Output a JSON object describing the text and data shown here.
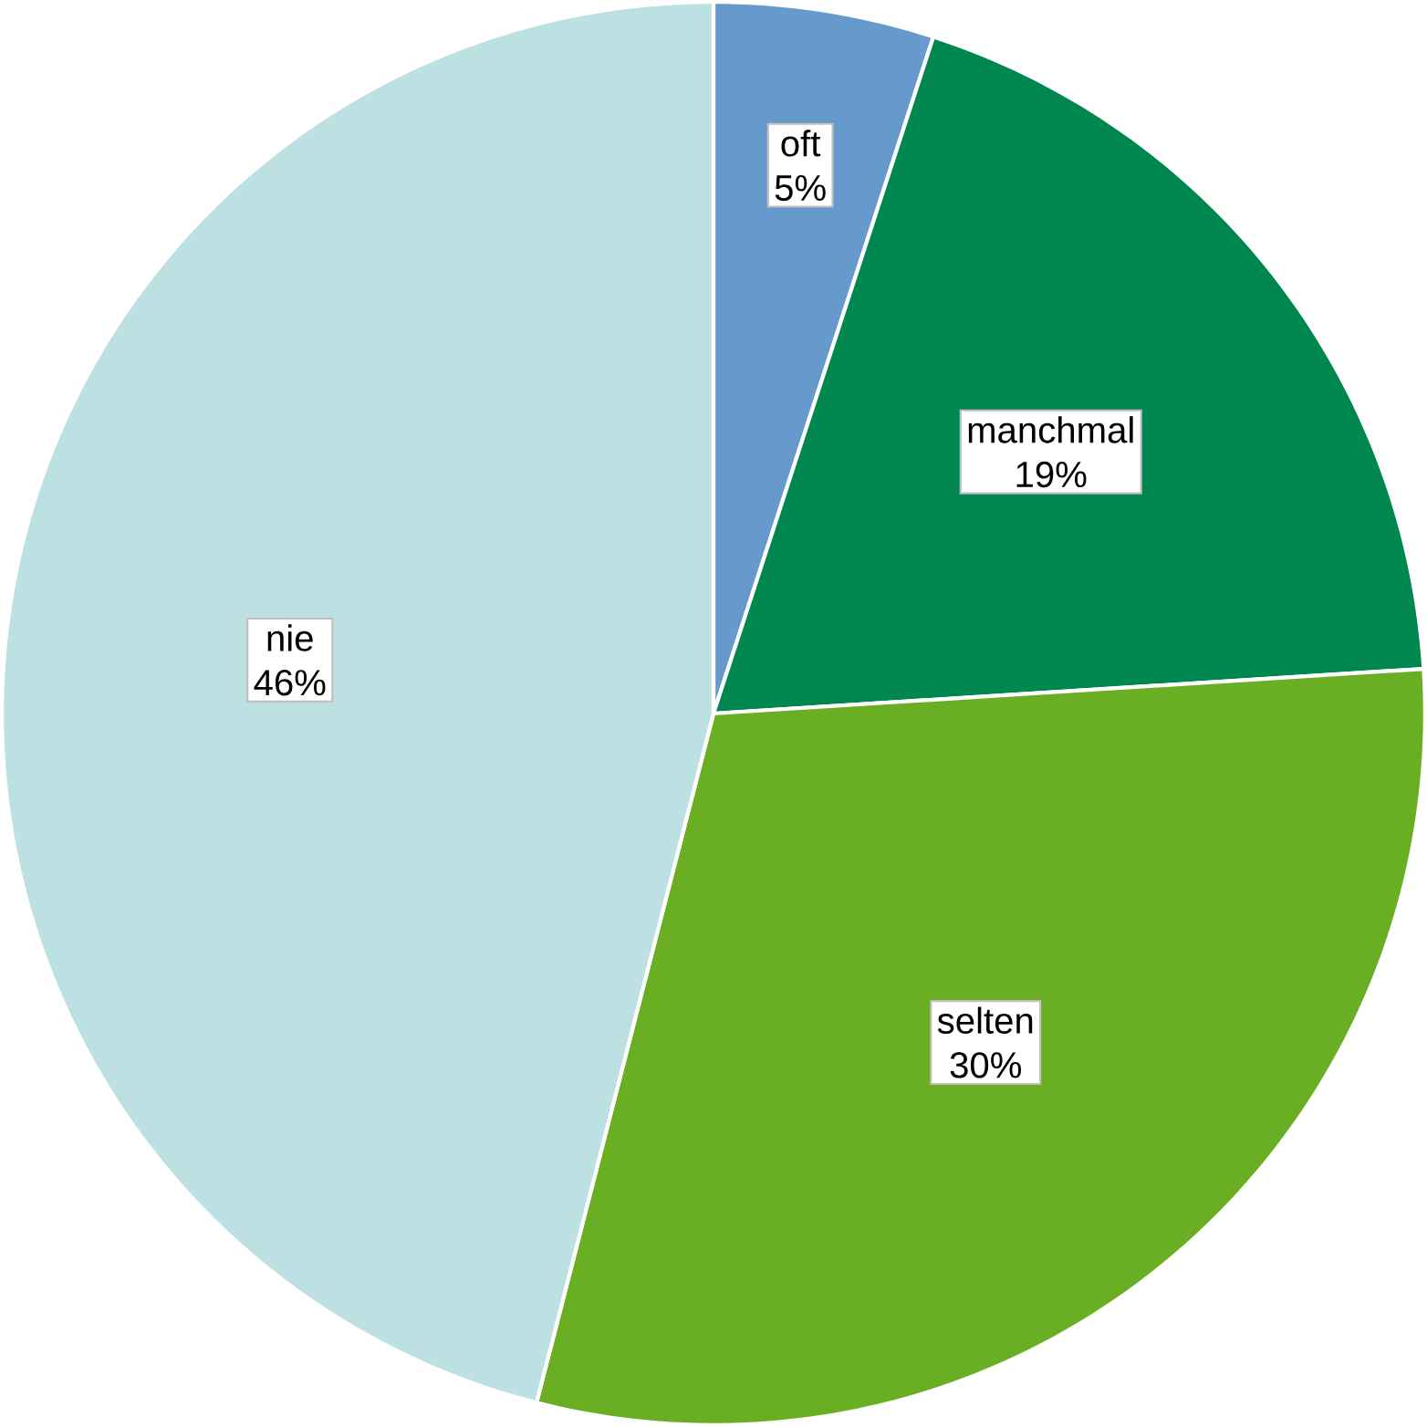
{
  "chart_data": {
    "type": "pie",
    "categories": [
      "oft",
      "manchmal",
      "selten",
      "nie"
    ],
    "values": [
      5,
      19,
      30,
      46
    ],
    "value_labels": [
      "5%",
      "19%",
      "30%",
      "46%"
    ],
    "colors": [
      "#6699cc",
      "#00874f",
      "#6aaf23",
      "#bde0e3"
    ]
  }
}
